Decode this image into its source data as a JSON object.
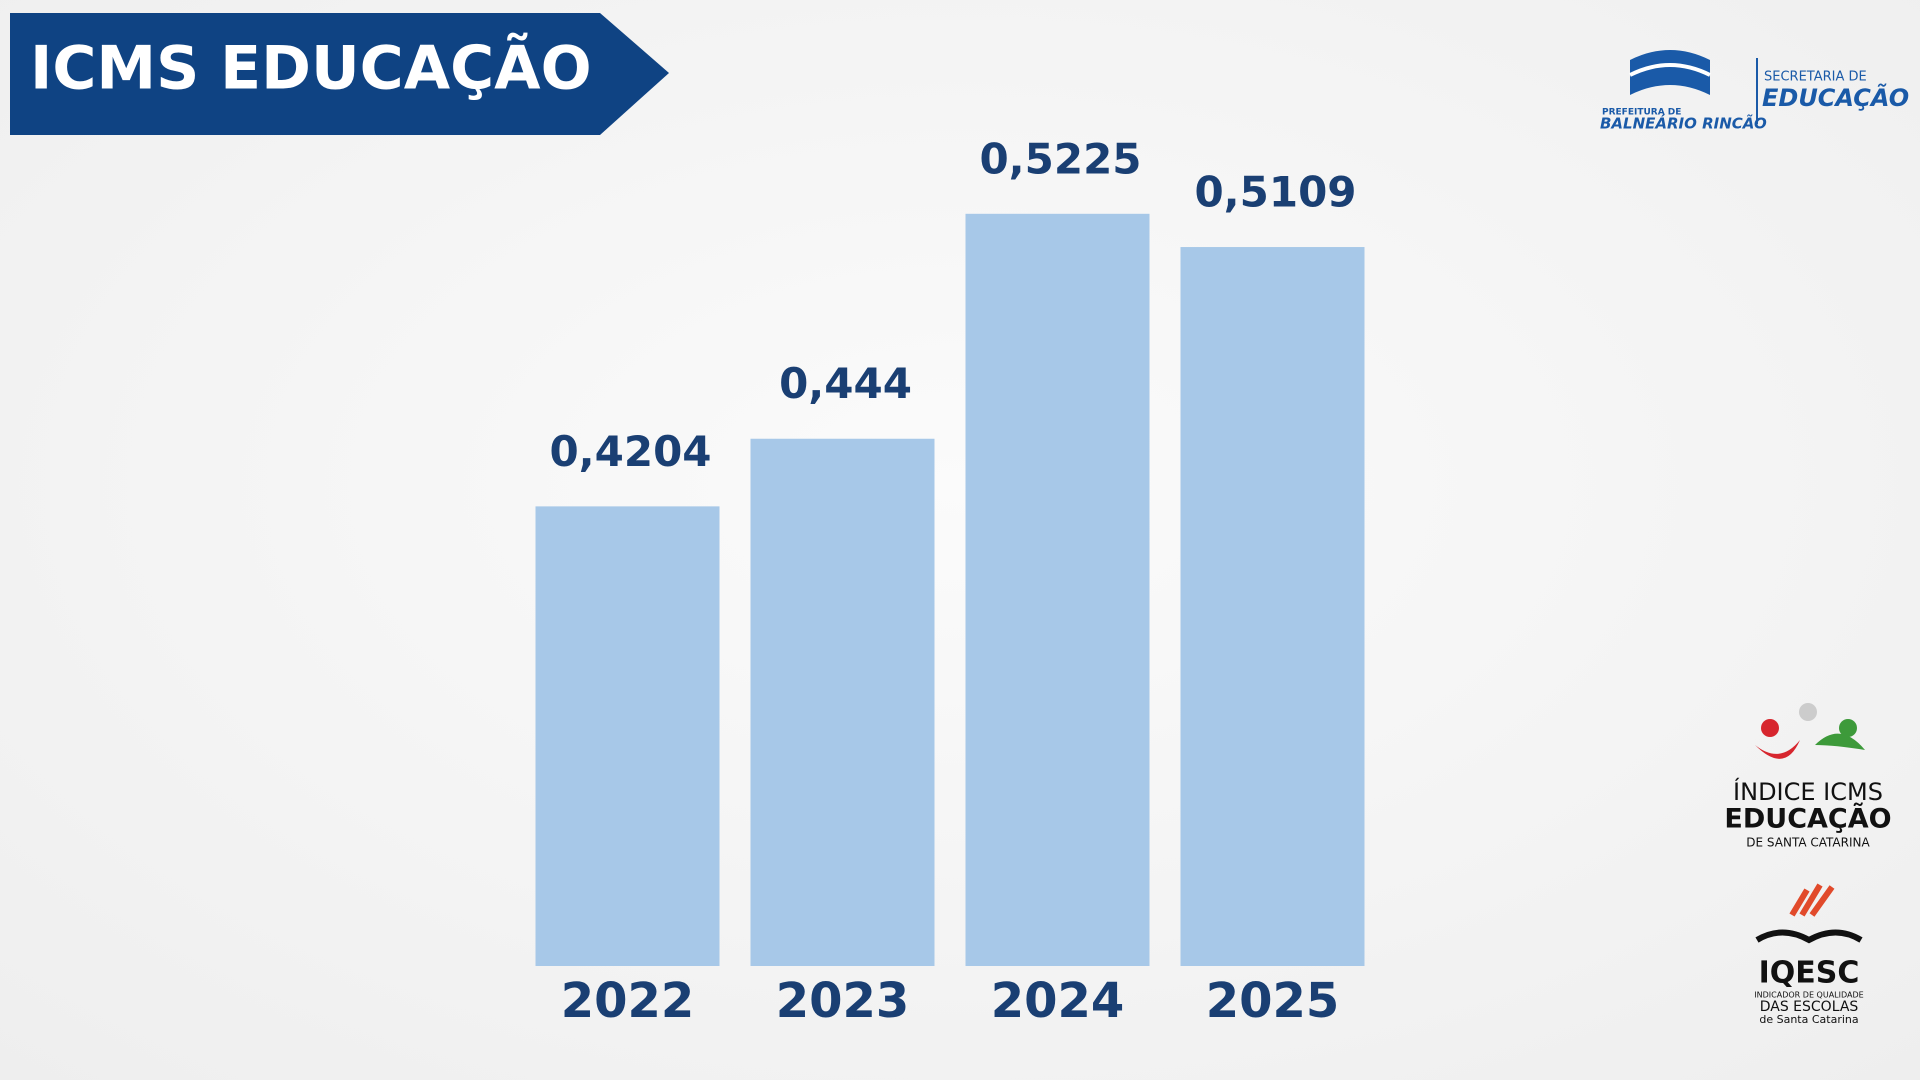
{
  "chart_data": {
    "type": "bar",
    "title": "ICMS EDUCAÇÃO",
    "categories": [
      "2022",
      "2023",
      "2024",
      "2025"
    ],
    "values": [
      0.4204,
      0.444,
      0.5225,
      0.5109
    ],
    "value_labels": [
      "0,4204",
      "0,444",
      "0,5225",
      "0,5109"
    ],
    "color": "#a7c8e8",
    "ylim": [
      0.26,
      0.55
    ]
  },
  "logos": {
    "secretaria": {
      "top": "SECRETARIA DE",
      "main": "EDUCAÇÃO",
      "city_top": "PREFEITURA DE",
      "city": "BALNEÁRIO RINCÃO"
    },
    "indice": {
      "line1": "ÍNDICE ICMS",
      "line2": "EDUCAÇÃO",
      "line3": "DE SANTA CATARINA"
    },
    "iqesc": {
      "name": "IQESC",
      "line1": "INDICADOR DE QUALIDADE",
      "line2": "DAS ESCOLAS",
      "line3": "de Santa Catarina"
    }
  }
}
